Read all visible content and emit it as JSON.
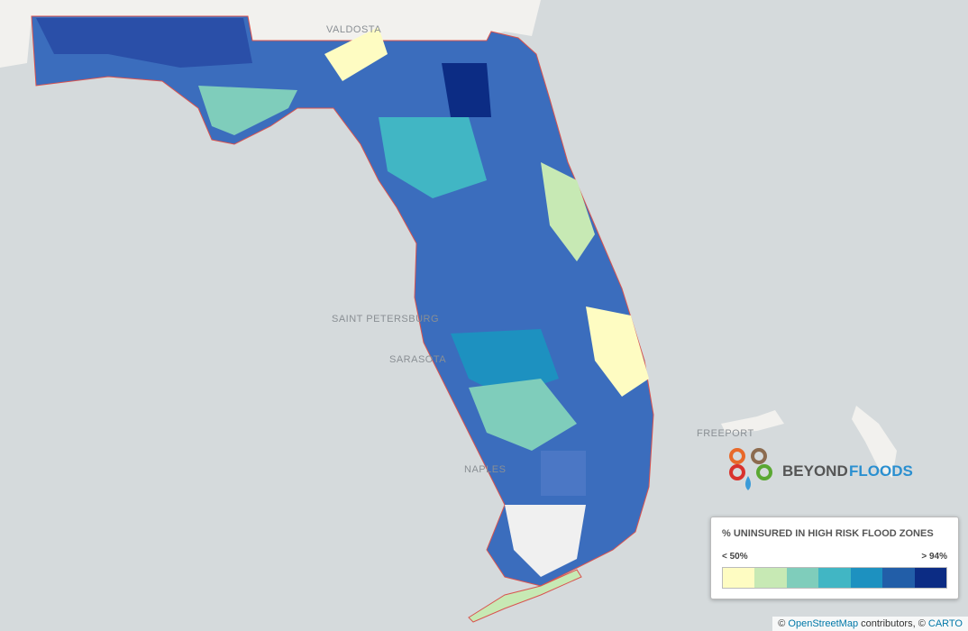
{
  "map": {
    "places": [
      "VALDOSTA",
      "SAINT PETERSBURG",
      "SARASOTA",
      "NAPLES",
      "FREEPORT"
    ]
  },
  "logo": {
    "word1": "BEYOND",
    "word2": "FLOODS"
  },
  "legend": {
    "title": "% UNINSURED IN HIGH RISK FLOOD ZONES",
    "low_label": "< 50%",
    "high_label": "> 94%",
    "colors": [
      "#fefcc2",
      "#c7e9b4",
      "#7fcdbb",
      "#41b6c4",
      "#1d91c0",
      "#225ea8",
      "#0c2c84"
    ]
  },
  "attribution": {
    "prefix": "©",
    "osm": "OpenStreetMap",
    "middle": "contributors, ©",
    "carto": "CARTO"
  }
}
